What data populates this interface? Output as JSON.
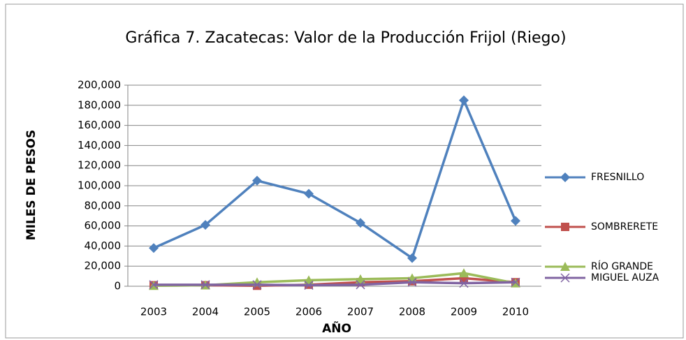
{
  "chart_data": {
    "type": "line",
    "title": "Gráfica 7. Zacatecas: Valor de la Producción Frijol (Riego)",
    "x_label": "AÑO",
    "y_label": "MILES DE PESOS",
    "categories": [
      "2003",
      "2004",
      "2005",
      "2006",
      "2007",
      "2008",
      "2009",
      "2010"
    ],
    "series": [
      {
        "name": "FRESNILLO",
        "color": "#4f81bd",
        "marker": "diamond",
        "values": [
          38000,
          61000,
          105000,
          92000,
          63000,
          28000,
          185000,
          65000
        ]
      },
      {
        "name": "SOMBRERETE",
        "color": "#c0504d",
        "marker": "square",
        "values": [
          1000,
          1000,
          500,
          1500,
          4000,
          5000,
          8000,
          4000
        ]
      },
      {
        "name": "RÍO GRANDE",
        "color": "#9bbb59",
        "marker": "triangle",
        "values": [
          500,
          1000,
          4000,
          6000,
          7000,
          8000,
          13000,
          3000
        ]
      },
      {
        "name": "MIGUEL AUZA",
        "color": "#8064a2",
        "marker": "x",
        "values": [
          1500,
          1500,
          1500,
          1000,
          1500,
          4000,
          3000,
          4000
        ]
      }
    ],
    "ylim": [
      0,
      200000
    ],
    "yticks": [
      0,
      {
        "value": 20000,
        "label": "20,000"
      },
      {
        "value": 40000,
        "label": "40,000"
      },
      {
        "value": 60000,
        "label": "60,000"
      },
      {
        "value": 80000,
        "label": "80,000"
      },
      {
        "value": 100000,
        "label": "100,000"
      },
      {
        "value": 120000,
        "label": "120,000"
      },
      {
        "value": 140000,
        "label": "140,000"
      },
      {
        "value": 160000,
        "label": "160,000"
      },
      {
        "value": 180000,
        "label": "180,000"
      },
      {
        "value": 200000,
        "label": "200,000"
      }
    ],
    "grid": true,
    "legend": "right"
  }
}
